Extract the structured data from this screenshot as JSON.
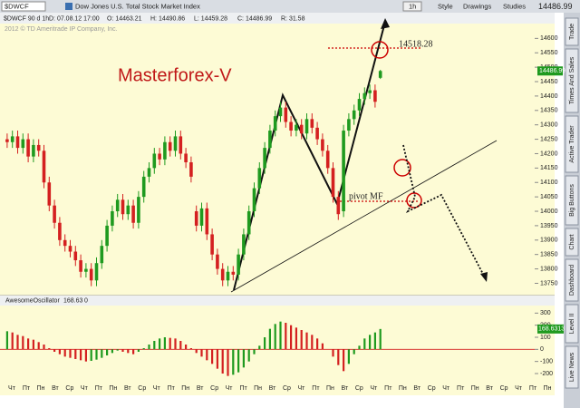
{
  "toolbar": {
    "symbol": "$DWCF",
    "description": "Dow Jones U.S. Total Stock Market Index",
    "interval": "1h",
    "buttons": [
      "Style",
      "Drawings",
      "Studies"
    ],
    "last": "14486.99"
  },
  "info_bar": [
    "$DWCF 90 d 1h",
    "D: 07.08.12 17:00",
    "O: 14463.21",
    "H: 14490.86",
    "L: 14459.28",
    "C: 14486.99",
    "R: 31.58"
  ],
  "copyright": "2012 © TD Ameritrade IP Company, Inc.",
  "side_tabs": [
    "Trade",
    "Times And Sales",
    "Active Trader",
    "Big Buttons",
    "Chart",
    "Dashboard",
    "Level II",
    "Live News"
  ],
  "chart_data": [
    {
      "type": "candlestick",
      "annotations": {
        "title": "Masterforex-V",
        "level": "14518.28",
        "pivot": "pivot MF"
      },
      "up_color": "#1f9a1f",
      "down_color": "#d42020",
      "ylim": [
        13720,
        14620
      ],
      "yticks": [
        13750,
        13800,
        13850,
        13900,
        13950,
        14000,
        14050,
        14100,
        14150,
        14200,
        14250,
        14300,
        14350,
        14400,
        14450,
        14500,
        14550,
        14600
      ],
      "open": [
        14250,
        14240,
        14260,
        14220,
        14250,
        14190,
        14230,
        14210,
        14100,
        14020,
        13960,
        13900,
        13880,
        13860,
        13830,
        13790,
        13800,
        13760,
        13820,
        13880,
        13950,
        14000,
        14040,
        13990,
        14020,
        13960,
        14050,
        14120,
        14150,
        14200,
        14180,
        14240,
        14210,
        14260,
        14200,
        14170,
        14000,
        13950,
        14010,
        13920,
        13850,
        13800,
        13760,
        13790,
        13780,
        13850,
        13920,
        14000,
        14080,
        14150,
        14220,
        14280,
        14330,
        14360,
        14310,
        14280,
        14300,
        14270,
        14320,
        14290,
        14250,
        14210,
        14150,
        14050,
        14000,
        14280,
        14320,
        14350,
        14390,
        14410,
        14420,
        14463.21
      ],
      "high": [
        14270,
        14280,
        14280,
        14270,
        14270,
        14250,
        14250,
        14230,
        14120,
        14040,
        13980,
        13920,
        13900,
        13880,
        13850,
        13820,
        13820,
        13840,
        13900,
        13970,
        14020,
        14060,
        14060,
        14040,
        14040,
        14070,
        14140,
        14170,
        14220,
        14220,
        14260,
        14260,
        14280,
        14280,
        14220,
        14190,
        14020,
        14030,
        14030,
        13940,
        13870,
        13820,
        13810,
        13810,
        13870,
        13940,
        14020,
        14100,
        14170,
        14240,
        14300,
        14350,
        14380,
        14380,
        14330,
        14320,
        14320,
        14340,
        14340,
        14310,
        14270,
        14230,
        14170,
        14070,
        14300,
        14340,
        14370,
        14410,
        14430,
        14440,
        14440,
        14490.86
      ],
      "low": [
        14220,
        14220,
        14200,
        14200,
        14170,
        14170,
        14190,
        14080,
        14000,
        13940,
        13880,
        13860,
        13840,
        13810,
        13770,
        13770,
        13740,
        13740,
        13800,
        13860,
        13930,
        13980,
        13970,
        13970,
        13940,
        13940,
        14030,
        14100,
        14130,
        14160,
        14160,
        14190,
        14190,
        14180,
        14150,
        14100,
        13930,
        13930,
        13900,
        13830,
        13780,
        13740,
        13740,
        13760,
        13760,
        13830,
        13900,
        13980,
        14060,
        14130,
        14200,
        14260,
        14310,
        14290,
        14260,
        14260,
        14250,
        14250,
        14270,
        14230,
        14190,
        14130,
        14030,
        13970,
        13980,
        14260,
        14300,
        14330,
        14370,
        14390,
        14360,
        14459.28
      ],
      "close": [
        14240,
        14260,
        14220,
        14250,
        14190,
        14230,
        14210,
        14100,
        14020,
        13960,
        13900,
        13880,
        13860,
        13830,
        13790,
        13800,
        13760,
        13820,
        13880,
        13950,
        14000,
        14040,
        13990,
        14020,
        13960,
        14050,
        14120,
        14150,
        14200,
        14180,
        14240,
        14210,
        14260,
        14200,
        14170,
        14120,
        13950,
        14010,
        13920,
        13850,
        13800,
        13760,
        13790,
        13780,
        13850,
        13920,
        14000,
        14080,
        14150,
        14220,
        14280,
        14330,
        14360,
        14310,
        14280,
        14300,
        14270,
        14320,
        14290,
        14250,
        14210,
        14150,
        14050,
        13990,
        14280,
        14320,
        14350,
        14390,
        14410,
        14420,
        14380,
        14486.99
      ],
      "x_tick_labels": [
        "Чт",
        "Пт",
        "Пн",
        "Вт",
        "Ср",
        "Чт",
        "Пт",
        "Пн",
        "Вт",
        "Ср",
        "Чт",
        "Пт",
        "Пн",
        "Вт",
        "Ср",
        "Чт",
        "Пт",
        "Пн",
        "Вт",
        "Ср",
        "Чт",
        "Пт",
        "Пн",
        "Вт",
        "Ср",
        "Чт",
        "Пт",
        "Пн",
        "Вт",
        "Ср",
        "Чт",
        "Пт",
        "Пн",
        "Вт",
        "Ср",
        "Чт",
        "Пт",
        "Пн"
      ]
    },
    {
      "type": "oscillator",
      "title": "AwesomeOscillator",
      "header_values": [
        "168.63",
        "0"
      ],
      "last_value_label": "168.6313",
      "up_color": "#1f9a1f",
      "down_color": "#d42020",
      "ylim": [
        -260,
        340
      ],
      "yticks": [
        -200,
        -100,
        0,
        100,
        200,
        300
      ],
      "values": [
        150,
        140,
        120,
        110,
        90,
        80,
        60,
        40,
        10,
        -20,
        -40,
        -60,
        -70,
        -80,
        -90,
        -100,
        -95,
        -85,
        -70,
        -50,
        -30,
        -10,
        -20,
        -30,
        -40,
        -20,
        10,
        40,
        70,
        90,
        100,
        95,
        90,
        70,
        40,
        10,
        -30,
        -60,
        -90,
        -120,
        -160,
        -200,
        -220,
        -210,
        -190,
        -150,
        -100,
        -40,
        30,
        100,
        170,
        210,
        230,
        220,
        200,
        180,
        160,
        140,
        120,
        90,
        50,
        0,
        -60,
        -130,
        -180,
        -120,
        -40,
        30,
        90,
        120,
        140,
        168.63
      ]
    }
  ]
}
